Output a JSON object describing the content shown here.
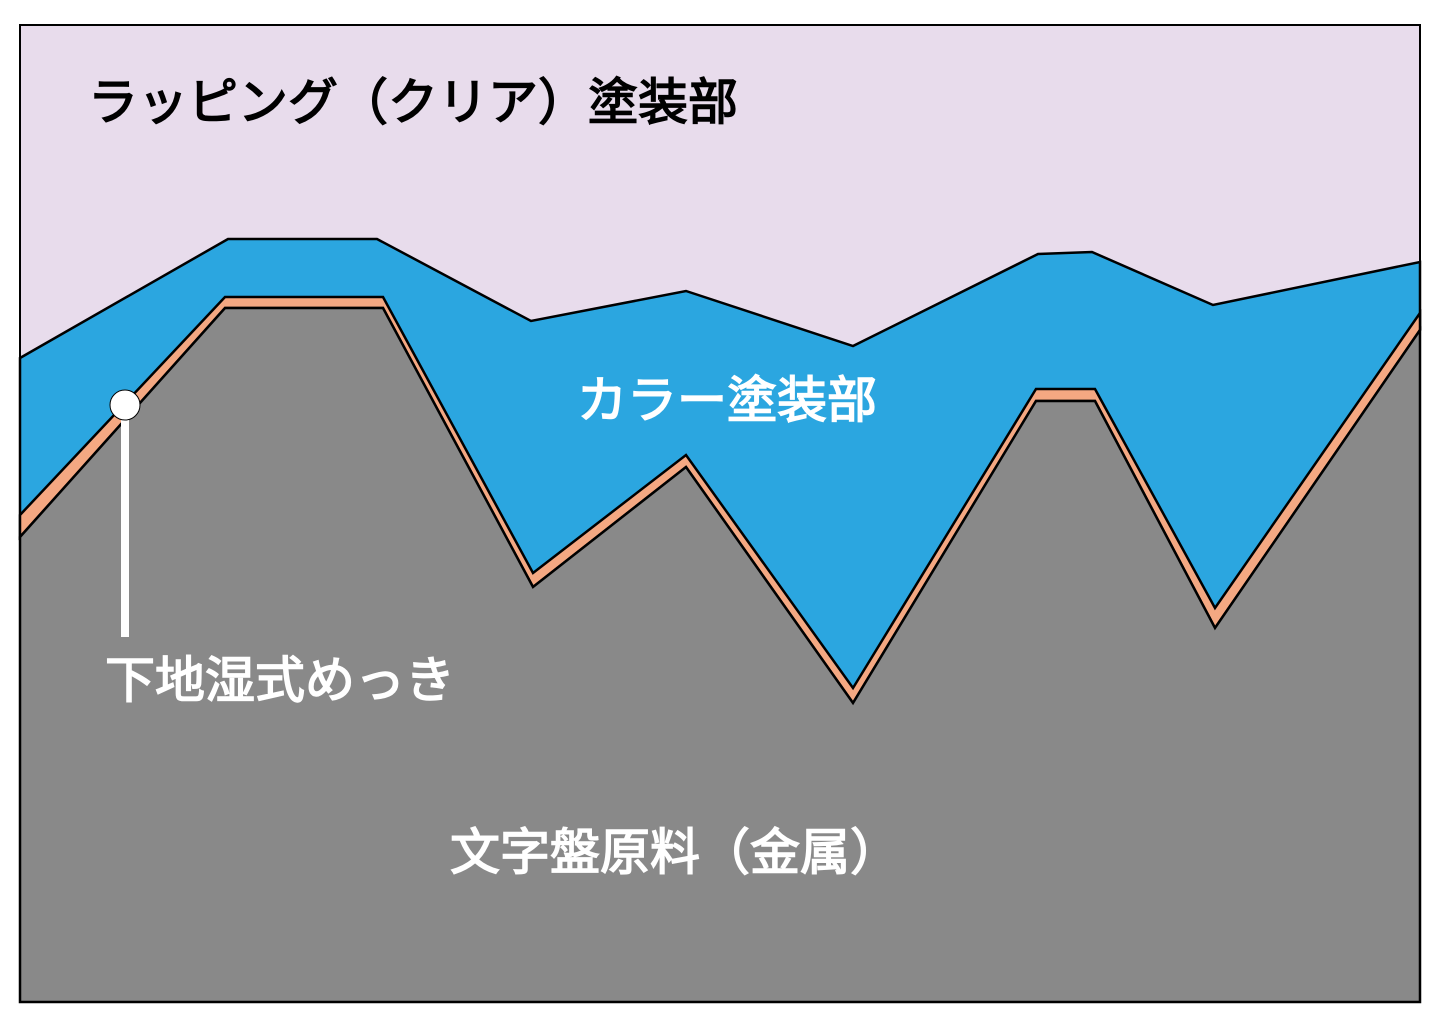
{
  "layers": {
    "clear_coat": "ラッピング（クリア）塗装部",
    "color_coat": "カラー塗装部",
    "plating": "下地湿式めっき",
    "base_metal": "文字盤原料（金属）"
  }
}
